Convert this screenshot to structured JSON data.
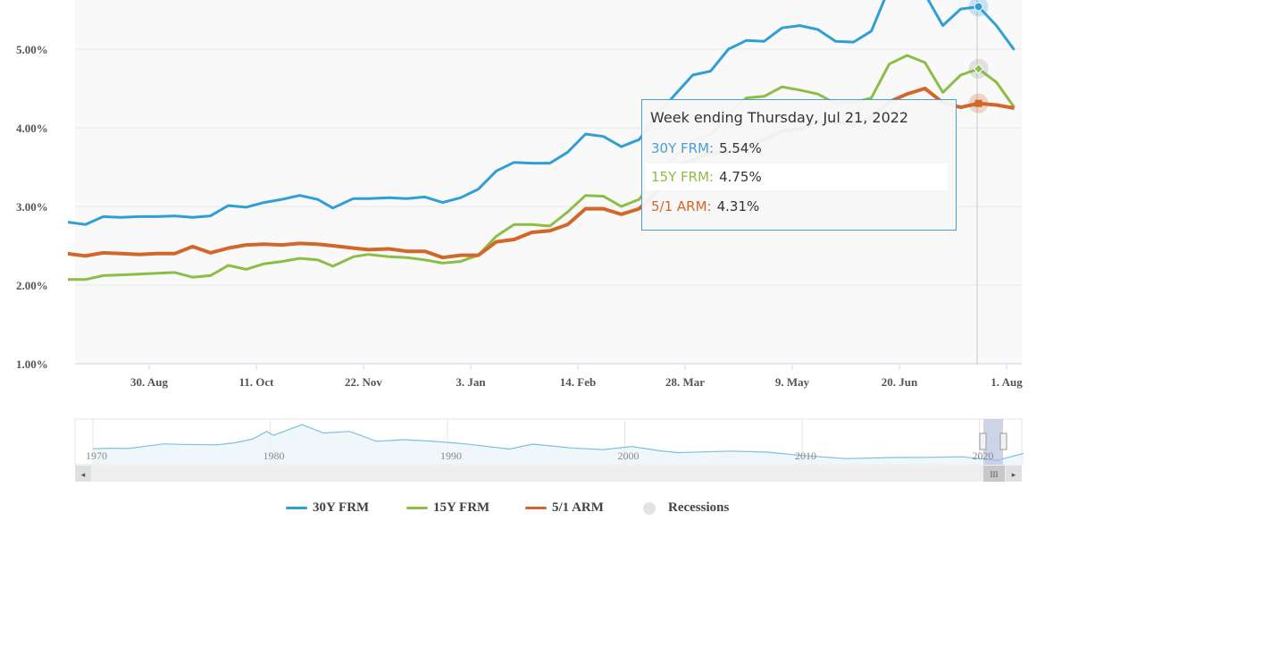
{
  "chart_data": {
    "type": "line",
    "ylim": [
      1,
      5.625
    ],
    "y_ticks": [
      "1.00%",
      "2.00%",
      "3.00%",
      "4.00%",
      "5.00%"
    ],
    "y_tick_values": [
      1,
      2,
      3,
      4,
      5
    ],
    "x_ticks": [
      "30. Aug",
      "11. Oct",
      "22. Nov",
      "3. Jan",
      "14. Feb",
      "28. Mar",
      "9. May",
      "20. Jun",
      "1. Aug"
    ],
    "x_tick_dates": [
      "2021-08-30",
      "2021-10-11",
      "2021-11-22",
      "2022-01-03",
      "2022-02-14",
      "2022-03-28",
      "2022-05-09",
      "2022-06-20",
      "2022-08-01"
    ],
    "grid": true,
    "x": [
      "2021-07-29",
      "2021-08-05",
      "2021-08-12",
      "2021-08-19",
      "2021-08-26",
      "2021-09-02",
      "2021-09-09",
      "2021-09-16",
      "2021-09-23",
      "2021-09-30",
      "2021-10-07",
      "2021-10-14",
      "2021-10-21",
      "2021-10-28",
      "2021-11-04",
      "2021-11-10",
      "2021-11-18",
      "2021-11-24",
      "2021-12-02",
      "2021-12-09",
      "2021-12-16",
      "2021-12-23",
      "2021-12-30",
      "2022-01-06",
      "2022-01-13",
      "2022-01-20",
      "2022-01-27",
      "2022-02-03",
      "2022-02-10",
      "2022-02-17",
      "2022-02-24",
      "2022-03-03",
      "2022-03-10",
      "2022-03-17",
      "2022-03-24",
      "2022-03-31",
      "2022-04-07",
      "2022-04-14",
      "2022-04-21",
      "2022-04-28",
      "2022-05-05",
      "2022-05-12",
      "2022-05-19",
      "2022-05-26",
      "2022-06-02",
      "2022-06-09",
      "2022-06-16",
      "2022-06-23",
      "2022-06-30",
      "2022-07-07",
      "2022-07-14",
      "2022-07-21",
      "2022-07-28",
      "2022-08-04"
    ],
    "series": [
      {
        "name": "30Y FRM",
        "color": "#2f9fd6",
        "values": [
          2.8,
          2.77,
          2.87,
          2.86,
          2.87,
          2.87,
          2.88,
          2.86,
          2.88,
          3.01,
          2.99,
          3.05,
          3.09,
          3.14,
          3.09,
          2.98,
          3.1,
          3.1,
          3.11,
          3.1,
          3.12,
          3.05,
          3.11,
          3.22,
          3.45,
          3.56,
          3.55,
          3.55,
          3.69,
          3.92,
          3.89,
          3.76,
          3.85,
          4.16,
          4.42,
          4.67,
          4.72,
          5.0,
          5.11,
          5.1,
          5.27,
          5.3,
          5.25,
          5.1,
          5.09,
          5.23,
          5.78,
          5.81,
          5.7,
          5.3,
          5.51,
          5.54,
          5.3,
          4.99
        ]
      },
      {
        "name": "15Y FRM",
        "color": "#8cbd45",
        "values": [
          2.07,
          2.07,
          2.12,
          2.13,
          2.14,
          2.15,
          2.16,
          2.1,
          2.12,
          2.25,
          2.2,
          2.27,
          2.3,
          2.34,
          2.32,
          2.24,
          2.36,
          2.39,
          2.36,
          2.35,
          2.32,
          2.28,
          2.3,
          2.38,
          2.62,
          2.77,
          2.77,
          2.75,
          2.93,
          3.14,
          3.13,
          3.0,
          3.09,
          3.39,
          3.63,
          3.83,
          3.91,
          4.17,
          4.38,
          4.4,
          4.52,
          4.48,
          4.43,
          4.31,
          4.32,
          4.38,
          4.81,
          4.92,
          4.83,
          4.45,
          4.67,
          4.75,
          4.58,
          4.26
        ]
      },
      {
        "name": "5/1 ARM",
        "color": "#d2672a",
        "values": [
          2.4,
          2.37,
          2.41,
          2.4,
          2.39,
          2.4,
          2.4,
          2.49,
          2.41,
          2.47,
          2.51,
          2.52,
          2.51,
          2.53,
          2.52,
          2.5,
          2.47,
          2.45,
          2.46,
          2.43,
          2.43,
          2.35,
          2.38,
          2.38,
          2.55,
          2.58,
          2.67,
          2.69,
          2.77,
          2.97,
          2.97,
          2.9,
          2.97,
          3.19,
          3.5,
          3.59,
          3.69,
          3.69,
          3.78,
          3.85,
          3.96,
          3.98,
          4.08,
          4.07,
          4.04,
          4.13,
          4.33,
          4.43,
          4.5,
          4.32,
          4.26,
          4.31,
          4.29,
          4.25
        ]
      }
    ],
    "tooltip": {
      "title": "Week ending Thursday, Jul 21, 2022",
      "date": "2022-07-21",
      "rows": [
        {
          "label": "30Y FRM:",
          "value": "5.54%",
          "color": "#4a9fd0"
        },
        {
          "label": "15Y FRM:",
          "value": "4.75%",
          "color": "#8cbd45"
        },
        {
          "label": "5/1 ARM:",
          "value": "4.31%",
          "color": "#d2672a"
        }
      ]
    },
    "navigator": {
      "year_labels": [
        "1970",
        "1980",
        "1990",
        "2000",
        "2010",
        "2020"
      ],
      "years": [
        1971,
        1972,
        1974,
        1975,
        1977,
        1978,
        1979,
        1979.8,
        1980.2,
        1981.8,
        1983,
        1984.5,
        1986,
        1987.5,
        1989,
        1991,
        1993.5,
        1994.8,
        1997,
        1998.8,
        2000.4,
        2002,
        2003,
        2006,
        2008,
        2010,
        2012.5,
        2015,
        2017,
        2019,
        2021,
        2022.5
      ],
      "values": [
        7.5,
        7.4,
        9.2,
        9.0,
        8.8,
        9.6,
        11.0,
        14.0,
        12.5,
        16.6,
        13.4,
        14.0,
        10.2,
        10.8,
        10.3,
        9.2,
        7.2,
        9.1,
        7.6,
        7.0,
        8.2,
        6.5,
        5.8,
        6.4,
        6.0,
        4.7,
        3.5,
        3.9,
        4.0,
        4.2,
        2.8,
        5.5
      ]
    },
    "legend": [
      {
        "label": "30Y FRM",
        "color": "#2f9fd6"
      },
      {
        "label": "15Y FRM",
        "color": "#8cbd45"
      },
      {
        "label": "5/1 ARM",
        "color": "#d2672a"
      },
      {
        "label": "Recessions",
        "color": "#e4e4e4"
      }
    ],
    "legend_position": "bottom"
  }
}
